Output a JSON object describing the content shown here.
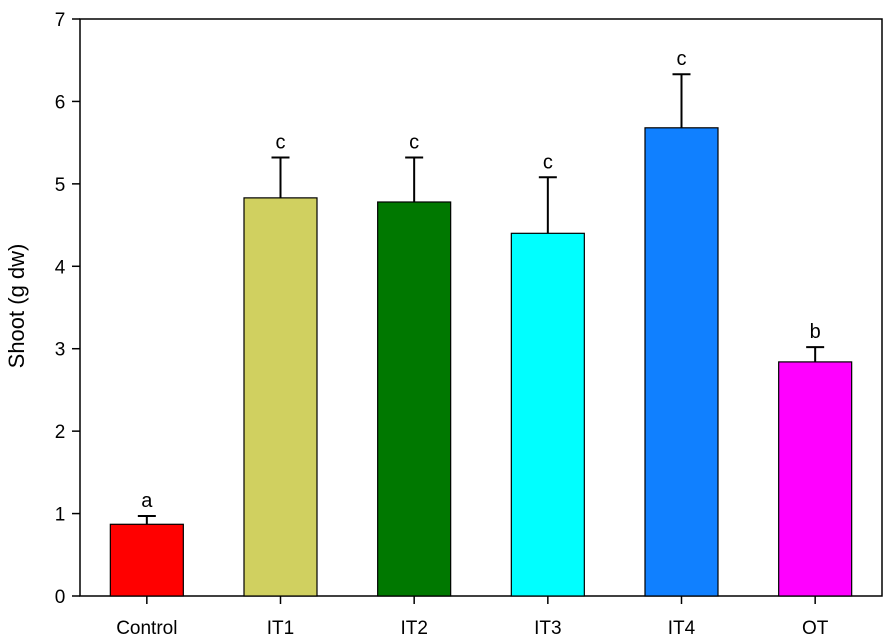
{
  "chart_data": {
    "type": "bar",
    "title": "",
    "xlabel": "",
    "ylabel": "Shoot (g dw)",
    "ylim": [
      0,
      7
    ],
    "yticks": [
      0,
      1,
      2,
      3,
      4,
      5,
      6,
      7
    ],
    "grid": false,
    "categories": [
      "Control",
      "IT1",
      "IT2",
      "IT3",
      "IT4",
      "OT"
    ],
    "values": [
      0.87,
      4.83,
      4.78,
      4.4,
      5.68,
      2.84
    ],
    "errors": [
      0.1,
      0.49,
      0.54,
      0.68,
      0.65,
      0.18
    ],
    "significance": [
      "a",
      "c",
      "c",
      "c",
      "c",
      "b"
    ],
    "colors": [
      "#ff0000",
      "#d0d060",
      "#007800",
      "#00ffff",
      "#1080ff",
      "#ff00ff"
    ]
  }
}
